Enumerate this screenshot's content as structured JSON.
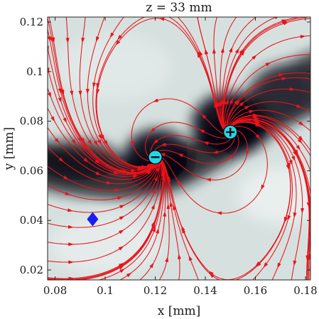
{
  "chart_data": {
    "type": "streamplot",
    "title": "z = 33 mm",
    "xlabel": "x [mm]",
    "ylabel": "y [mm]",
    "xlim": [
      0.077,
      0.182
    ],
    "ylim": [
      0.016,
      0.122
    ],
    "xticks": [
      0.08,
      0.1,
      0.12,
      0.14,
      0.16,
      0.18
    ],
    "xtick_labels": [
      "0.08",
      "0.1",
      "0.12",
      "0.14",
      "0.16",
      "0.18"
    ],
    "yticks": [
      0.02,
      0.04,
      0.06,
      0.08,
      0.1,
      0.12
    ],
    "ytick_labels": [
      "0.02",
      "0.04",
      "0.06",
      "0.08",
      "0.1",
      "0.12"
    ],
    "grid": false,
    "background": "grayscale intensity map with dark diagonal band through the two singularities",
    "stream_color": "#e8141b",
    "singularities": [
      {
        "sign": "+",
        "x": 0.15,
        "y": 0.0756,
        "color": "#22d8e8"
      },
      {
        "sign": "-",
        "x": 0.12,
        "y": 0.0655,
        "color": "#22d8e8"
      }
    ],
    "marker": {
      "shape": "diamond",
      "x": 0.095,
      "y": 0.0405,
      "color": "#1a1ff0"
    }
  }
}
